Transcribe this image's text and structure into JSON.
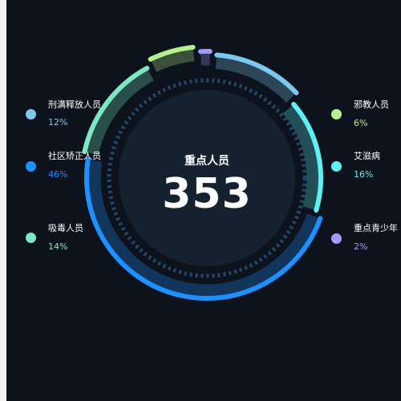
{
  "center": {
    "title": "重点人员",
    "value": "353"
  },
  "chart_data": {
    "type": "pie",
    "title": "重点人员",
    "total": 353,
    "slices": [
      {
        "name": "刑满释放人员",
        "percent": 12,
        "label": "12%",
        "color": "#7cc8f0"
      },
      {
        "name": "社区矫正人员",
        "percent": 46,
        "label": "46%",
        "color": "#1e90ff"
      },
      {
        "name": "吸毒人员",
        "percent": 14,
        "label": "14%",
        "color": "#7ee8c4"
      },
      {
        "name": "邪教人员",
        "percent": 6,
        "label": "6%",
        "color": "#b4f08c"
      },
      {
        "name": "艾滋病",
        "percent": 16,
        "label": "16%",
        "color": "#5ef0f4"
      },
      {
        "name": "重点青少年",
        "percent": 2,
        "label": "2%",
        "color": "#a29bf5"
      }
    ]
  }
}
